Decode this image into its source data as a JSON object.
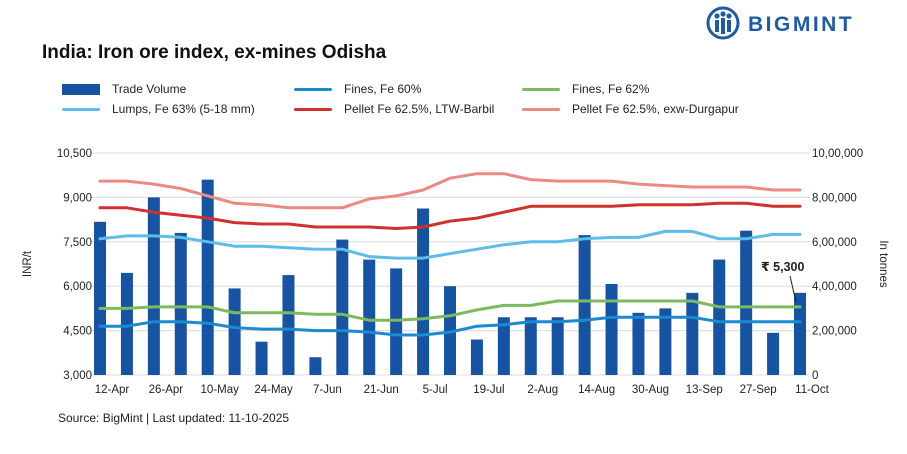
{
  "brand": {
    "name": "BIGMINT",
    "color": "#1f5aa6"
  },
  "title": "India: Iron ore index, ex-mines Odisha",
  "source": "Source: BigMint | Last updated: 11-10-2025",
  "chart_data": {
    "type": "bar+line",
    "title": "India: Iron ore index, ex-mines Odisha",
    "xlabel": "",
    "ylabel": "INR/t",
    "y2label": "In tonnes",
    "ylim": [
      3000,
      10500
    ],
    "yticks": [
      "3,000",
      "4,500",
      "6,000",
      "7,500",
      "9,000",
      "10,500"
    ],
    "y2lim": [
      0,
      1000000
    ],
    "y2ticks": [
      "0",
      "2,00,000",
      "4,00,000",
      "6,00,000",
      "8,00,000",
      "10,00,000"
    ],
    "x_tick_labels": [
      "12-Apr",
      "26-Apr",
      "10-May",
      "24-May",
      "7-Jun",
      "21-Jun",
      "5-Jul",
      "19-Jul",
      "2-Aug",
      "14-Aug",
      "30-Aug",
      "13-Sep",
      "27-Sep",
      "11-Oct"
    ],
    "n_weeks": 27,
    "grid": "horizontal",
    "legend_position": "top",
    "bars": {
      "name": "Trade Volume",
      "color": "#1653a3",
      "values": [
        690000,
        460000,
        800000,
        640000,
        880000,
        390000,
        150000,
        450000,
        80000,
        610000,
        520000,
        480000,
        750000,
        400000,
        160000,
        260000,
        260000,
        260000,
        630000,
        410000,
        280000,
        300000,
        370000,
        520000,
        650000,
        190000,
        370000
      ]
    },
    "series": [
      {
        "name": "Fines, Fe 60%",
        "color": "#1c8ad1",
        "values": [
          4650,
          4650,
          4800,
          4800,
          4750,
          4600,
          4550,
          4550,
          4500,
          4500,
          4450,
          4350,
          4350,
          4450,
          4650,
          4700,
          4800,
          4800,
          4850,
          4950,
          4950,
          4950,
          4950,
          4800,
          4800,
          4800,
          4800
        ]
      },
      {
        "name": "Fines, Fe 62%",
        "color": "#7dba5f",
        "values": [
          5250,
          5250,
          5300,
          5300,
          5300,
          5100,
          5100,
          5100,
          5050,
          5050,
          4850,
          4850,
          4900,
          5000,
          5200,
          5350,
          5350,
          5500,
          5500,
          5500,
          5500,
          5500,
          5500,
          5300,
          5300,
          5300,
          5300
        ]
      },
      {
        "name": "Lumps, Fe 63% (5-18 mm)",
        "color": "#5cbde8",
        "values": [
          7600,
          7700,
          7700,
          7650,
          7500,
          7350,
          7350,
          7300,
          7250,
          7250,
          7000,
          6950,
          6950,
          7100,
          7250,
          7400,
          7500,
          7500,
          7600,
          7650,
          7650,
          7850,
          7850,
          7600,
          7600,
          7750,
          7750
        ]
      },
      {
        "name": "Pellet Fe 62.5%, LTW-Barbil",
        "color": "#d0312d",
        "values": [
          8650,
          8650,
          8500,
          8400,
          8300,
          8150,
          8100,
          8100,
          8000,
          8000,
          8000,
          7950,
          8000,
          8200,
          8300,
          8500,
          8700,
          8700,
          8700,
          8700,
          8750,
          8750,
          8750,
          8800,
          8800,
          8700,
          8700
        ]
      },
      {
        "name": "Pellet Fe  62.5%, exw-Durgapur",
        "color": "#eb8a84",
        "values": [
          9550,
          9550,
          9450,
          9300,
          9050,
          8800,
          8750,
          8650,
          8650,
          8650,
          8950,
          9050,
          9250,
          9650,
          9800,
          9800,
          9600,
          9550,
          9550,
          9550,
          9450,
          9400,
          9350,
          9350,
          9350,
          9250,
          9250
        ]
      }
    ],
    "annotations": [
      {
        "text": "₹ 5,300",
        "series": "Fines, Fe 62%",
        "week": 27
      }
    ]
  }
}
